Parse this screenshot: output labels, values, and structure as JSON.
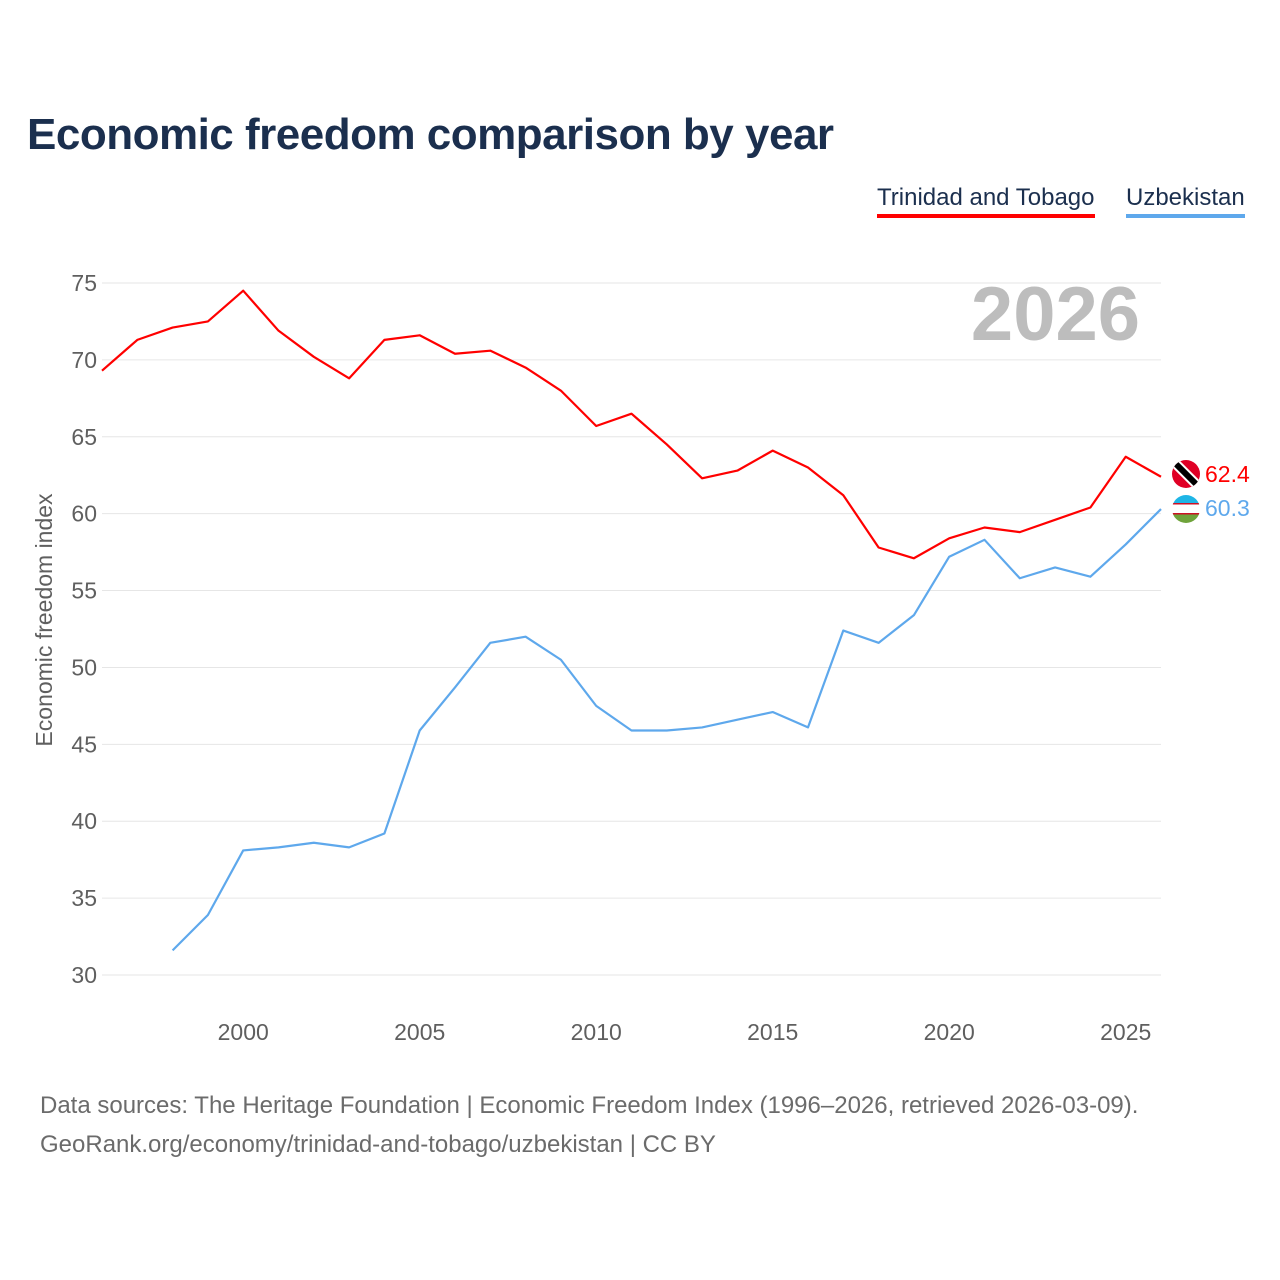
{
  "chart_data": {
    "type": "line",
    "title": "Economic freedom comparison by year",
    "xlabel": "",
    "ylabel": "Economic freedom index",
    "ylim": [
      30,
      75
    ],
    "xlim": [
      1996,
      2026
    ],
    "yticks": [
      30,
      35,
      40,
      45,
      50,
      55,
      60,
      65,
      70,
      75
    ],
    "xticks": [
      2000,
      2005,
      2010,
      2015,
      2020,
      2025
    ],
    "grid": true,
    "legend_placement": "top-right",
    "year_label": "2026",
    "series": [
      {
        "name": "Trinidad and Tobago",
        "color": "#ff0000",
        "end_label": "62.4",
        "x": [
          1996,
          1997,
          1998,
          1999,
          2000,
          2001,
          2002,
          2003,
          2004,
          2005,
          2006,
          2007,
          2008,
          2009,
          2010,
          2011,
          2012,
          2013,
          2014,
          2015,
          2016,
          2017,
          2018,
          2019,
          2020,
          2021,
          2022,
          2023,
          2024,
          2025,
          2026
        ],
        "values": [
          69.3,
          71.3,
          72.1,
          72.5,
          74.5,
          71.9,
          70.2,
          68.8,
          71.3,
          71.6,
          70.4,
          70.6,
          69.5,
          68.0,
          65.7,
          66.5,
          64.5,
          62.3,
          62.8,
          64.1,
          63.0,
          61.2,
          57.8,
          57.1,
          58.4,
          59.1,
          58.8,
          59.6,
          60.4,
          63.7,
          62.4
        ]
      },
      {
        "name": "Uzbekistan",
        "color": "#5ea8ec",
        "end_label": "60.3",
        "x": [
          1998,
          1999,
          2000,
          2001,
          2002,
          2003,
          2004,
          2005,
          2006,
          2007,
          2008,
          2009,
          2010,
          2011,
          2012,
          2013,
          2014,
          2015,
          2016,
          2017,
          2018,
          2019,
          2020,
          2021,
          2022,
          2023,
          2024,
          2025,
          2026
        ],
        "values": [
          31.6,
          33.9,
          38.1,
          38.3,
          38.6,
          38.3,
          39.2,
          45.9,
          48.7,
          51.6,
          52.0,
          50.5,
          47.5,
          45.9,
          45.9,
          46.1,
          46.6,
          47.1,
          46.1,
          52.4,
          51.6,
          53.4,
          57.2,
          58.3,
          55.8,
          56.5,
          55.9,
          58.0,
          60.3
        ]
      }
    ]
  },
  "footer": {
    "line1": "Data sources: The Heritage Foundation | Economic Freedom Index (1996–2026, retrieved 2026-03-09).",
    "line2": "GeoRank.org/economy/trinidad-and-tobago/uzbekistan | CC BY"
  }
}
